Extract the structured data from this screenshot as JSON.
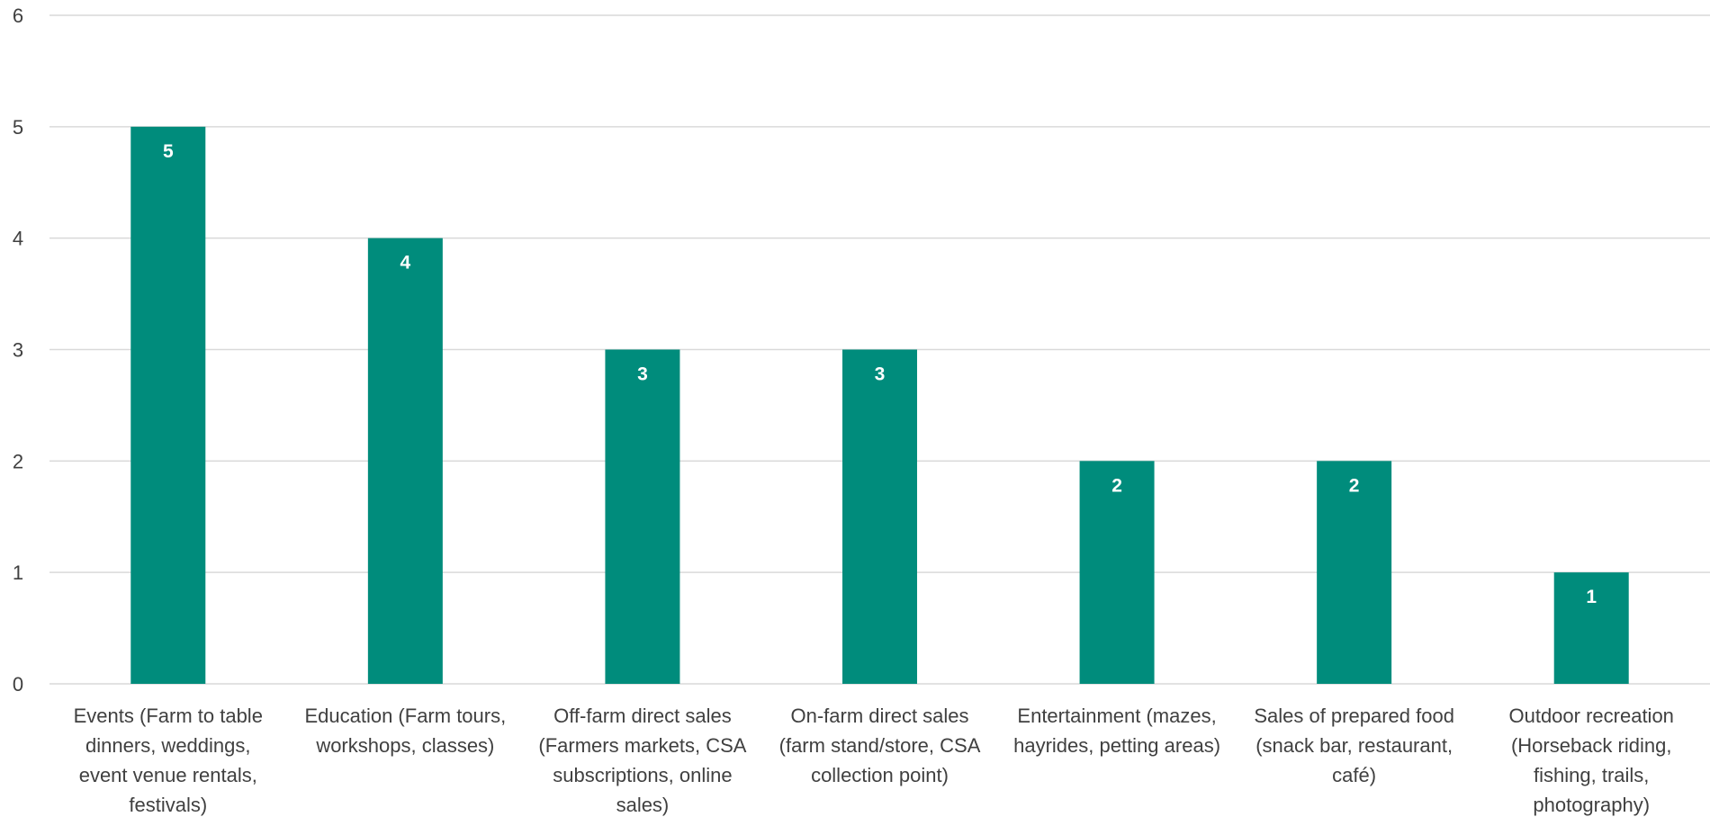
{
  "chart_data": {
    "type": "bar",
    "title": "",
    "xlabel": "",
    "ylabel": "",
    "ylim": [
      0,
      6
    ],
    "yticks": [
      0,
      1,
      2,
      3,
      4,
      5,
      6
    ],
    "grid": true,
    "legend": "none",
    "bar_color": "#008c7c",
    "categories": [
      [
        "Events (Farm to table",
        "dinners, weddings,",
        "event venue rentals,",
        "festivals)"
      ],
      [
        "Education (Farm tours,",
        "workshops, classes)"
      ],
      [
        "Off-farm direct sales",
        "(Farmers markets, CSA",
        "subscriptions, online",
        "sales)"
      ],
      [
        "On-farm direct sales",
        "(farm stand/store, CSA",
        "collection point)"
      ],
      [
        "Entertainment (mazes,",
        "hayrides, petting areas)"
      ],
      [
        "Sales of prepared food",
        "(snack bar, restaurant,",
        "café)"
      ],
      [
        "Outdoor recreation",
        "(Horseback riding,",
        "fishing, trails,",
        "photography)"
      ]
    ],
    "values": [
      5,
      4,
      3,
      3,
      2,
      2,
      1
    ]
  }
}
